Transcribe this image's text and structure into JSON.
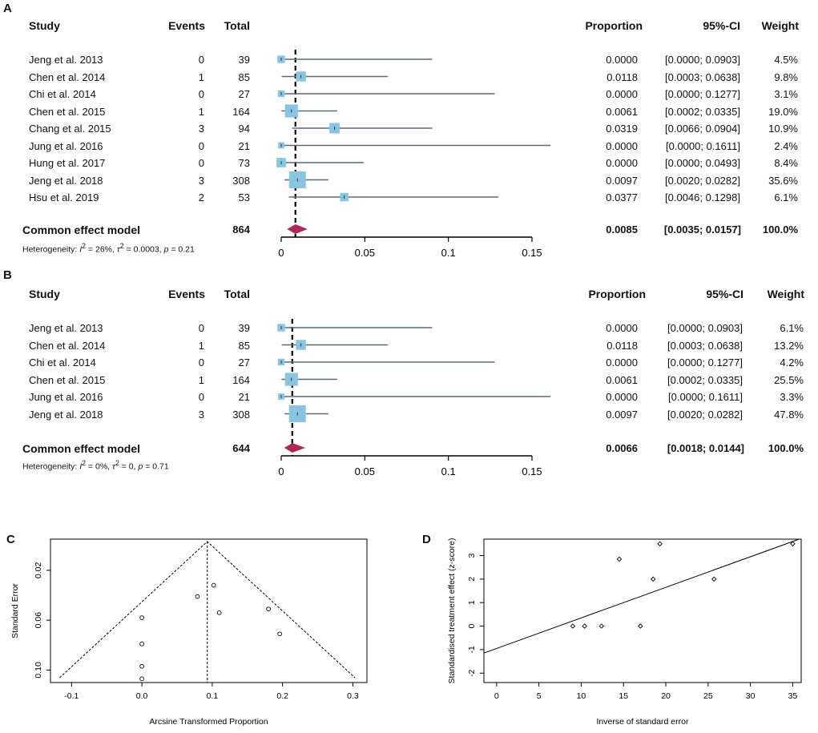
{
  "panels": {
    "A": "A",
    "B": "B",
    "C": "C",
    "D": "D"
  },
  "headers": {
    "study": "Study",
    "events": "Events",
    "total": "Total",
    "proportion": "Proportion",
    "ci": "95%-CI",
    "weight": "Weight"
  },
  "forest_A": {
    "rows": [
      {
        "study": "Jeng et al. 2013",
        "events": "0",
        "total": "39",
        "proportion": "0.0000",
        "ci": "[0.0000; 0.0903]",
        "weight": "4.5%"
      },
      {
        "study": "Chen et al. 2014",
        "events": "1",
        "total": "85",
        "proportion": "0.0118",
        "ci": "[0.0003; 0.0638]",
        "weight": "9.8%"
      },
      {
        "study": "Chi et al. 2014",
        "events": "0",
        "total": "27",
        "proportion": "0.0000",
        "ci": "[0.0000; 0.1277]",
        "weight": "3.1%"
      },
      {
        "study": "Chen et al. 2015",
        "events": "1",
        "total": "164",
        "proportion": "0.0061",
        "ci": "[0.0002; 0.0335]",
        "weight": "19.0%"
      },
      {
        "study": "Chang et al.  2015",
        "events": "3",
        "total": "94",
        "proportion": "0.0319",
        "ci": "[0.0066; 0.0904]",
        "weight": "10.9%"
      },
      {
        "study": "Jung et al. 2016",
        "events": "0",
        "total": "21",
        "proportion": "0.0000",
        "ci": "[0.0000; 0.1611]",
        "weight": "2.4%"
      },
      {
        "study": "Hung et al. 2017",
        "events": "0",
        "total": "73",
        "proportion": "0.0000",
        "ci": "[0.0000; 0.0493]",
        "weight": "8.4%"
      },
      {
        "study": "Jeng et al. 2018",
        "events": "3",
        "total": "308",
        "proportion": "0.0097",
        "ci": "[0.0020; 0.0282]",
        "weight": "35.6%"
      },
      {
        "study": "Hsu et al. 2019",
        "events": "2",
        "total": "53",
        "proportion": "0.0377",
        "ci": "[0.0046; 0.1298]",
        "weight": "6.1%"
      }
    ],
    "summary": {
      "label": "Common effect model",
      "total": "864",
      "proportion": "0.0085",
      "ci": "[0.0035; 0.0157]",
      "weight": "100.0%"
    },
    "het_prefix": "Heterogeneity: ",
    "het_i2": "I",
    "het_i2_value": " = 26%, ",
    "het_tau": "τ",
    "het_tau_value": " = 0.0003, ",
    "het_p": "p",
    "het_p_value": " = 0.21"
  },
  "forest_B": {
    "rows": [
      {
        "study": "Jeng et al. 2013",
        "events": "0",
        "total": "39",
        "proportion": "0.0000",
        "ci": "[0.0000; 0.0903]",
        "weight": "6.1%"
      },
      {
        "study": "Chen et al. 2014",
        "events": "1",
        "total": "85",
        "proportion": "0.0118",
        "ci": "[0.0003; 0.0638]",
        "weight": "13.2%"
      },
      {
        "study": "Chi et al. 2014",
        "events": "0",
        "total": "27",
        "proportion": "0.0000",
        "ci": "[0.0000; 0.1277]",
        "weight": "4.2%"
      },
      {
        "study": "Chen et al. 2015",
        "events": "1",
        "total": "164",
        "proportion": "0.0061",
        "ci": "[0.0002; 0.0335]",
        "weight": "25.5%"
      },
      {
        "study": "Jung et al. 2016",
        "events": "0",
        "total": "21",
        "proportion": "0.0000",
        "ci": "[0.0000; 0.1611]",
        "weight": "3.3%"
      },
      {
        "study": "Jeng et al. 2018",
        "events": "3",
        "total": "308",
        "proportion": "0.0097",
        "ci": "[0.0020; 0.0282]",
        "weight": "47.8%"
      }
    ],
    "summary": {
      "label": "Common effect model",
      "total": "644",
      "proportion": "0.0066",
      "ci": "[0.0018; 0.0144]",
      "weight": "100.0%"
    },
    "het_prefix": "Heterogeneity: ",
    "het_i2": "I",
    "het_i2_value": " = 0%, ",
    "het_tau": "τ",
    "het_tau_value": " = 0, ",
    "het_p": "p",
    "het_p_value": " = 0.71"
  },
  "chart_data": [
    {
      "type": "forest",
      "panel": "A",
      "xlim": [
        0,
        0.15
      ],
      "xticks": [
        "0",
        "0.05",
        "0.1",
        "0.15"
      ],
      "estimates": [
        0.0,
        0.0118,
        0.0,
        0.0061,
        0.0319,
        0.0,
        0.0,
        0.0097,
        0.0377
      ],
      "lower": [
        0.0,
        0.0003,
        0.0,
        0.0002,
        0.0066,
        0.0,
        0.0,
        0.002,
        0.0046
      ],
      "upper": [
        0.0903,
        0.0638,
        0.1277,
        0.0335,
        0.0904,
        0.1611,
        0.0493,
        0.0282,
        0.1298
      ],
      "weights": [
        4.5,
        9.8,
        3.1,
        19.0,
        10.9,
        2.4,
        8.4,
        35.6,
        6.1
      ],
      "pooled": 0.0085,
      "pooled_lower": 0.0035,
      "pooled_upper": 0.0157,
      "square_color": "#89c4e1",
      "diamond_color": "#b0275c"
    },
    {
      "type": "forest",
      "panel": "B",
      "xlim": [
        0,
        0.15
      ],
      "xticks": [
        "0",
        "0.05",
        "0.1",
        "0.15"
      ],
      "estimates": [
        0.0,
        0.0118,
        0.0,
        0.0061,
        0.0,
        0.0097
      ],
      "lower": [
        0.0,
        0.0003,
        0.0,
        0.0002,
        0.0,
        0.002
      ],
      "upper": [
        0.0903,
        0.0638,
        0.1277,
        0.0335,
        0.1611,
        0.0282
      ],
      "weights": [
        6.1,
        13.2,
        4.2,
        25.5,
        3.3,
        47.8
      ],
      "pooled": 0.0066,
      "pooled_lower": 0.0018,
      "pooled_upper": 0.0144,
      "square_color": "#89c4e1",
      "diamond_color": "#b0275c"
    },
    {
      "type": "scatter",
      "panel": "C",
      "subtype": "funnel",
      "xlabel": "Arcsine Transformed Proportion",
      "ylabel": "Standard Error",
      "xlim": [
        -0.13,
        0.32
      ],
      "ylim": [
        0.11,
        -0.005
      ],
      "y_reversed": true,
      "xticks": [
        -0.1,
        0.0,
        0.1,
        0.2,
        0.3
      ],
      "xtick_labels": [
        "-0.1",
        "0.0",
        "0.1",
        "0.2",
        "0.3"
      ],
      "yticks": [
        0.02,
        0.06,
        0.1
      ],
      "ytick_labels": [
        "0.02",
        "0.06",
        "0.10"
      ],
      "center": 0.093,
      "points": [
        {
          "x": 0.0,
          "y": 0.107
        },
        {
          "x": 0.0,
          "y": 0.097
        },
        {
          "x": 0.0,
          "y": 0.079
        },
        {
          "x": 0.0,
          "y": 0.058
        },
        {
          "x": 0.079,
          "y": 0.041
        },
        {
          "x": 0.102,
          "y": 0.032
        },
        {
          "x": 0.11,
          "y": 0.054
        },
        {
          "x": 0.18,
          "y": 0.051
        },
        {
          "x": 0.196,
          "y": 0.071
        }
      ]
    },
    {
      "type": "scatter",
      "panel": "D",
      "subtype": "galbraith",
      "xlabel": "Inverse of standard error",
      "ylabel": "Standardised treatment effect (z-score)",
      "xlim": [
        -1.5,
        36
      ],
      "ylim": [
        -2.4,
        3.7
      ],
      "xticks": [
        0,
        5,
        10,
        15,
        20,
        25,
        30,
        35
      ],
      "xtick_labels": [
        "0",
        "5",
        "10",
        "15",
        "20",
        "25",
        "30",
        "35"
      ],
      "yticks": [
        -2,
        -1,
        0,
        1,
        2,
        3
      ],
      "ytick_labels": [
        "-2",
        "-1",
        "0",
        "1",
        "2",
        "3"
      ],
      "regression": {
        "intercept": -0.95,
        "slope": 0.13
      },
      "points": [
        {
          "x": 9.0,
          "y": 0.0
        },
        {
          "x": 10.4,
          "y": 0.0
        },
        {
          "x": 12.4,
          "y": 0.0
        },
        {
          "x": 14.5,
          "y": 2.85
        },
        {
          "x": 17.0,
          "y": 0.0
        },
        {
          "x": 18.5,
          "y": 2.0
        },
        {
          "x": 19.3,
          "y": 3.5
        },
        {
          "x": 25.7,
          "y": 2.0
        },
        {
          "x": 35.0,
          "y": 3.5
        }
      ]
    }
  ]
}
